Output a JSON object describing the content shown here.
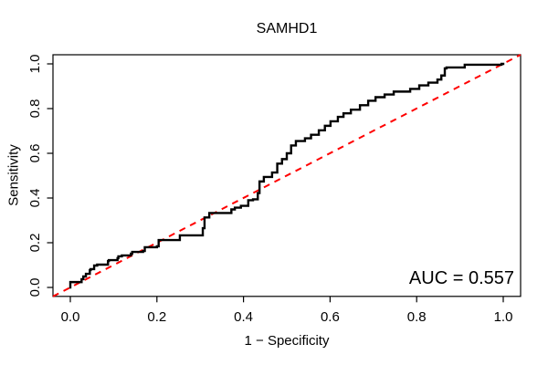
{
  "figure": {
    "background": "#ffffff"
  },
  "chart_data": {
    "type": "line",
    "subtype": "roc-curve",
    "title": "SAMHD1",
    "x_axis": {
      "label": "1 − Specificity",
      "range": [
        0,
        1
      ],
      "tick_values": [
        0,
        0.2,
        0.4,
        0.6,
        0.8,
        1.0
      ],
      "tick_labels": [
        "0.0",
        "0.2",
        "0.4",
        "0.6",
        "0.8",
        "1.0"
      ]
    },
    "y_axis": {
      "label": "Sensitivity",
      "range": [
        0,
        1
      ],
      "tick_values": [
        0,
        0.2,
        0.4,
        0.6,
        0.8,
        1.0
      ],
      "tick_labels": [
        "0.0",
        "0.2",
        "0.4",
        "0.6",
        "0.8",
        "1.0"
      ]
    },
    "grid": false,
    "legend": "none",
    "annotation": {
      "text": "AUC = 0.557",
      "position": "bottom-right"
    },
    "auc": 0.557,
    "series": [
      {
        "name": "ROC curve",
        "type": "step",
        "color": "#000000",
        "width": 2.4,
        "points": [
          [
            0.0,
            0.0
          ],
          [
            0.004,
            0.024
          ],
          [
            0.026,
            0.024
          ],
          [
            0.03,
            0.037
          ],
          [
            0.036,
            0.049
          ],
          [
            0.045,
            0.061
          ],
          [
            0.047,
            0.078
          ],
          [
            0.055,
            0.082
          ],
          [
            0.062,
            0.098
          ],
          [
            0.068,
            0.102
          ],
          [
            0.087,
            0.102
          ],
          [
            0.089,
            0.118
          ],
          [
            0.094,
            0.122
          ],
          [
            0.109,
            0.122
          ],
          [
            0.111,
            0.131
          ],
          [
            0.119,
            0.139
          ],
          [
            0.14,
            0.143
          ],
          [
            0.143,
            0.151
          ],
          [
            0.168,
            0.159
          ],
          [
            0.172,
            0.163
          ],
          [
            0.2,
            0.18
          ],
          [
            0.204,
            0.184
          ],
          [
            0.215,
            0.212
          ],
          [
            0.253,
            0.212
          ],
          [
            0.257,
            0.233
          ],
          [
            0.306,
            0.233
          ],
          [
            0.31,
            0.265
          ],
          [
            0.321,
            0.313
          ],
          [
            0.334,
            0.333
          ],
          [
            0.372,
            0.333
          ],
          [
            0.38,
            0.349
          ],
          [
            0.394,
            0.357
          ],
          [
            0.411,
            0.365
          ],
          [
            0.422,
            0.39
          ],
          [
            0.433,
            0.394
          ],
          [
            0.437,
            0.422
          ],
          [
            0.447,
            0.474
          ],
          [
            0.466,
            0.494
          ],
          [
            0.478,
            0.514
          ],
          [
            0.489,
            0.554
          ],
          [
            0.5,
            0.574
          ],
          [
            0.51,
            0.6
          ],
          [
            0.521,
            0.635
          ],
          [
            0.542,
            0.655
          ],
          [
            0.556,
            0.667
          ],
          [
            0.574,
            0.683
          ],
          [
            0.588,
            0.703
          ],
          [
            0.601,
            0.723
          ],
          [
            0.618,
            0.743
          ],
          [
            0.631,
            0.763
          ],
          [
            0.648,
            0.779
          ],
          [
            0.669,
            0.795
          ],
          [
            0.688,
            0.815
          ],
          [
            0.705,
            0.835
          ],
          [
            0.726,
            0.851
          ],
          [
            0.747,
            0.863
          ],
          [
            0.785,
            0.876
          ],
          [
            0.806,
            0.888
          ],
          [
            0.827,
            0.904
          ],
          [
            0.848,
            0.916
          ],
          [
            0.857,
            0.93
          ],
          [
            0.865,
            0.948
          ],
          [
            0.869,
            0.98
          ],
          [
            0.911,
            0.984
          ],
          [
            0.996,
            0.996
          ],
          [
            1.0,
            1.0
          ]
        ]
      },
      {
        "name": "chance diagonal",
        "type": "diagonal",
        "color": "#ff0000",
        "width": 2,
        "dash": [
          7,
          6
        ],
        "points": [
          [
            0,
            0
          ],
          [
            1,
            1
          ]
        ]
      }
    ]
  }
}
